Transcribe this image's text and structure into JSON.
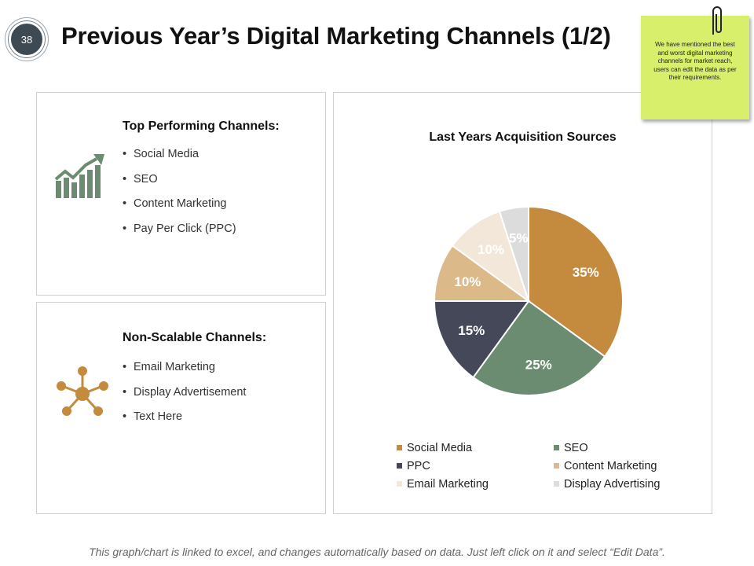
{
  "slide": {
    "page_number": "38",
    "title": "Previous Year’s Digital Marketing Channels (1/2)",
    "footer": "This graph/chart is linked to excel, and changes automatically based on data.  Just left click on it and select “Edit Data”."
  },
  "sticky_note": {
    "text": "We have mentioned the best and worst digital marketing channels for market reach, users can edit the data as per their requirements."
  },
  "top_panel": {
    "heading": "Top Performing Channels:",
    "icon": "growth-chart-icon",
    "items": [
      "Social Media",
      "SEO",
      "Content Marketing",
      "Pay Per Click (PPC)"
    ]
  },
  "bottom_panel": {
    "heading": "Non-Scalable Channels:",
    "icon": "network-icon",
    "items": [
      "Email Marketing",
      "Display Advertisement",
      "Text Here"
    ]
  },
  "colors": {
    "growth_icon": "#6b8c70",
    "network_icon": "#c48a3e",
    "page_badge": "#3d4a53"
  },
  "chart_data": {
    "type": "pie",
    "title": "Last Years Acquisition Sources",
    "categories": [
      "Social Media",
      "SEO",
      "PPC",
      "Content Marketing",
      "Email Marketing",
      "Display Advertising"
    ],
    "values": [
      35,
      25,
      15,
      10,
      10,
      5
    ],
    "labels": [
      "35%",
      "25%",
      "15%",
      "10%",
      "10%",
      "5%"
    ],
    "colors": [
      "#c48a3e",
      "#6b8c70",
      "#444858",
      "#dcb989",
      "#f2e7d9",
      "#dcdcdc"
    ],
    "label_colors": [
      "#ffffff",
      "#ffffff",
      "#ffffff",
      "#ffffff",
      "#ffffff",
      "#ffffff"
    ],
    "legend_position": "bottom"
  }
}
